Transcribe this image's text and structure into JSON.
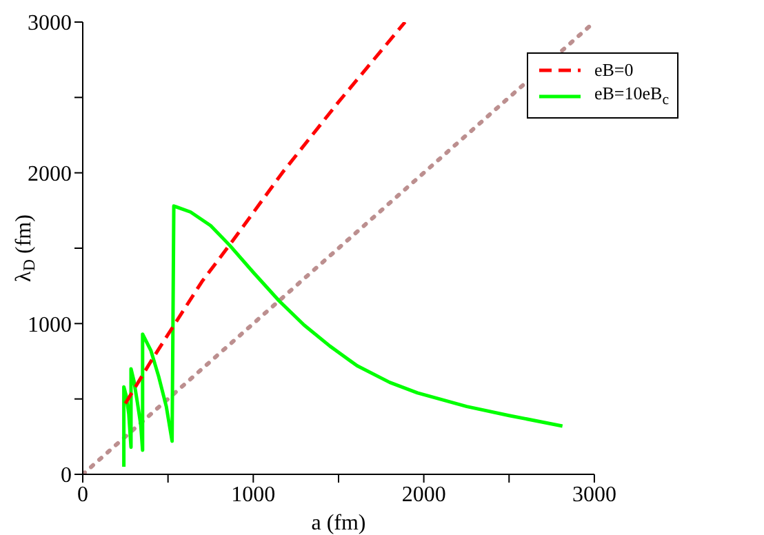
{
  "chart_data": {
    "type": "line",
    "xlabel": "a (fm)",
    "ylabel": "λ$_{D}$ (fm)",
    "xlim": [
      0,
      3000
    ],
    "ylim": [
      0,
      3000
    ],
    "xticks": [
      0,
      {
        "value": 500,
        "label": null
      },
      1000,
      {
        "value": 1500,
        "label": null
      },
      2000,
      {
        "value": 2500,
        "label": null
      },
      3000
    ],
    "yticks": [
      0,
      {
        "value": 500,
        "label": null
      },
      1000,
      {
        "value": 1500,
        "label": null
      },
      2000,
      {
        "value": 2500,
        "label": null
      },
      3000
    ],
    "legend": "top right",
    "marker": "none",
    "series": [
      {
        "name": "eB=0",
        "color": "#ff0000",
        "line_style": "dashed",
        "x": [
          250,
          400,
          541,
          700,
          880,
          1170,
          1500,
          1890
        ],
        "values": [
          470,
          750,
          1000,
          1280,
          1550,
          2000,
          2470,
          3000
        ]
      },
      {
        "name": "eB=10eB$_{c}$",
        "color": "#00ff00",
        "line_style": "solid",
        "x": [
          241,
          241,
          255,
          270,
          283,
          283,
          300,
          320,
          340,
          351,
          351,
          400,
          445,
          490,
          524,
          534,
          632,
          750,
          861,
          1000,
          1152,
          1298,
          1450,
          1609,
          1800,
          1963,
          2252,
          2500,
          2813
        ],
        "values": [
          50,
          580,
          520,
          400,
          180,
          700,
          620,
          480,
          330,
          160,
          930,
          820,
          650,
          450,
          220,
          1780,
          1740,
          1650,
          1520,
          1340,
          1150,
          990,
          850,
          720,
          610,
          540,
          450,
          390,
          320
        ]
      },
      {
        "color": "#bc8f8f",
        "line_style": "dotted",
        "x": [
          0,
          3000
        ],
        "values": [
          0,
          3000
        ]
      }
    ]
  }
}
